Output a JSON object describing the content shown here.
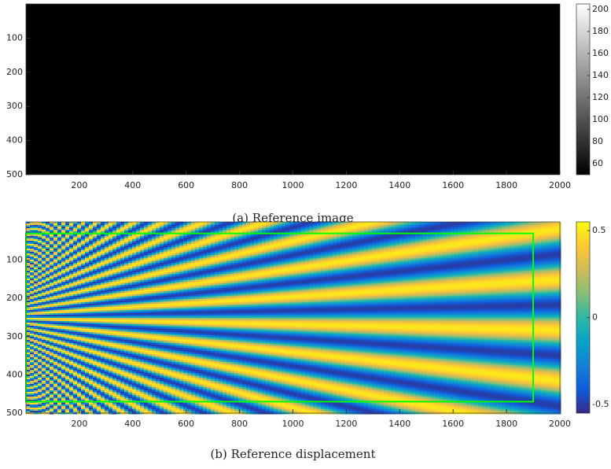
{
  "chart_data": [
    {
      "type": "image",
      "caption": "(a) Reference image",
      "xlim": [
        0,
        2000
      ],
      "ylim": [
        0,
        500
      ],
      "xticks": [
        200,
        400,
        600,
        800,
        1000,
        1200,
        1400,
        1600,
        1800,
        2000
      ],
      "yticks": [
        100,
        200,
        300,
        400,
        500
      ],
      "colorbar": {
        "colormap": "gray",
        "clim": [
          50,
          205
        ],
        "ticks": [
          60,
          80,
          100,
          120,
          140,
          160,
          180,
          200
        ]
      }
    },
    {
      "type": "field",
      "caption": "(b) Reference displacement",
      "xlim": [
        0,
        2000
      ],
      "ylim": [
        0,
        500
      ],
      "xticks": [
        200,
        400,
        600,
        800,
        1000,
        1200,
        1400,
        1600,
        1800,
        2000
      ],
      "yticks": [
        100,
        200,
        300,
        400,
        500
      ],
      "colorbar": {
        "colormap": "parula",
        "clim": [
          -0.55,
          0.55
        ],
        "ticks": [
          -0.5,
          0,
          0.5
        ]
      },
      "roi": {
        "x": [
          0,
          1900
        ],
        "y": [
          30,
          470
        ],
        "color": "#00ff00"
      }
    }
  ]
}
